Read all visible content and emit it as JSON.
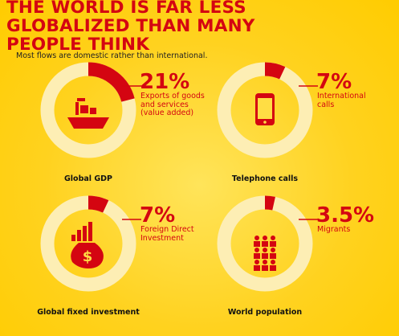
{
  "title": "THE WORLD IS FAR LESS GLOBALIZED THAN MANY PEOPLE THINK",
  "subtitle": "Most flows are domestic rather than international.",
  "chart_data": [
    {
      "type": "donut",
      "title": "Global GDP",
      "values": [
        21
      ],
      "value_labels": [
        "21%"
      ],
      "description": "Exports of goods and services (value added)",
      "color": "#d40511"
    },
    {
      "type": "donut",
      "title": "Telephone calls",
      "values": [
        7
      ],
      "value_labels": [
        "7%"
      ],
      "description": "International calls",
      "color": "#d40511"
    },
    {
      "type": "donut",
      "title": "Global fixed investment",
      "values": [
        7
      ],
      "value_labels": [
        "7%"
      ],
      "description": "Foreign Direct Investment",
      "color": "#d40511"
    },
    {
      "type": "donut",
      "title": "World population",
      "values": [
        3.5
      ],
      "value_labels": [
        "3.5%"
      ],
      "description": "Migrants",
      "color": "#d40511"
    }
  ]
}
